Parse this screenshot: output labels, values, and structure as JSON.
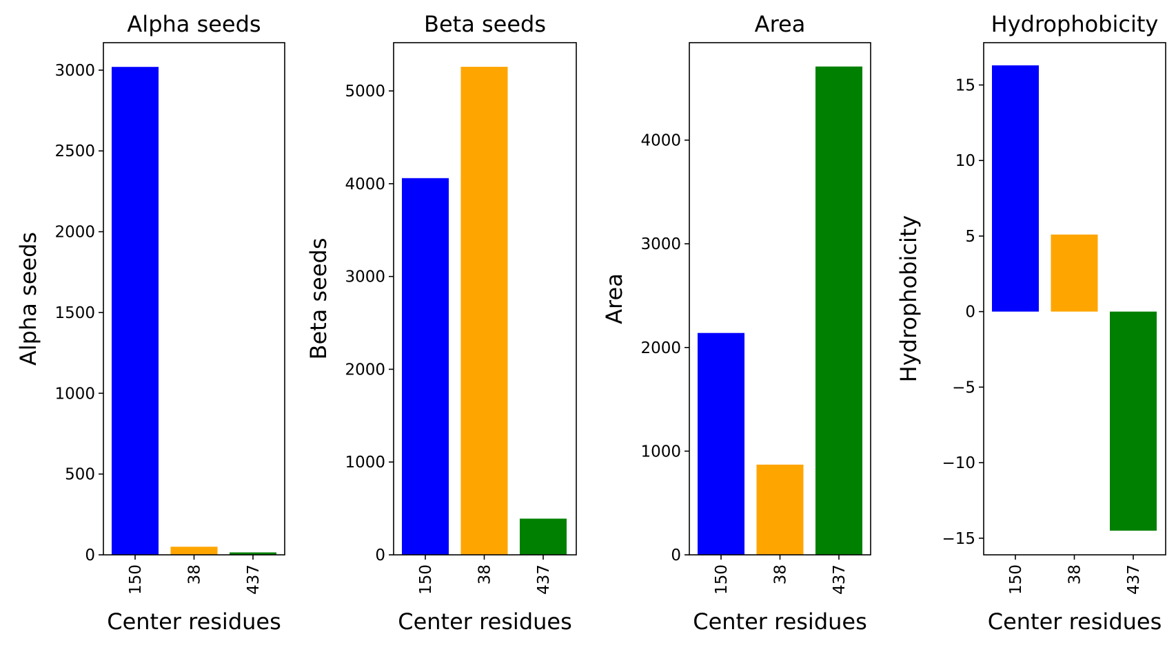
{
  "chart_data": [
    {
      "type": "bar",
      "title": "Alpha seeds",
      "xlabel": "Center residues",
      "ylabel": "Alpha seeds",
      "categories": [
        "150",
        "38",
        "437"
      ],
      "values": [
        3020,
        50,
        15
      ],
      "colors": [
        "#0000ff",
        "#ffa500",
        "#008000"
      ],
      "ylim": [
        0,
        3170
      ],
      "yticks": [
        0,
        500,
        1000,
        1500,
        2000,
        2500,
        3000
      ],
      "ytick_labels": [
        "0",
        "500",
        "1000",
        "1500",
        "2000",
        "2500",
        "3000"
      ],
      "grid": false
    },
    {
      "type": "bar",
      "title": "Beta seeds",
      "xlabel": "Center residues",
      "ylabel": "Beta seeds",
      "categories": [
        "150",
        "38",
        "437"
      ],
      "values": [
        4060,
        5260,
        390
      ],
      "colors": [
        "#0000ff",
        "#ffa500",
        "#008000"
      ],
      "ylim": [
        0,
        5520
      ],
      "yticks": [
        0,
        1000,
        2000,
        3000,
        4000,
        5000
      ],
      "ytick_labels": [
        "0",
        "1000",
        "2000",
        "3000",
        "4000",
        "5000"
      ],
      "grid": false
    },
    {
      "type": "bar",
      "title": "Area",
      "xlabel": "Center residues",
      "ylabel": "Area",
      "categories": [
        "150",
        "38",
        "437"
      ],
      "values": [
        2140,
        870,
        4710
      ],
      "colors": [
        "#0000ff",
        "#ffa500",
        "#008000"
      ],
      "ylim": [
        0,
        4940
      ],
      "yticks": [
        0,
        1000,
        2000,
        3000,
        4000
      ],
      "ytick_labels": [
        "0",
        "1000",
        "2000",
        "3000",
        "4000"
      ],
      "grid": false
    },
    {
      "type": "bar",
      "title": "Hydrophobicity",
      "xlabel": "Center residues",
      "ylabel": "Hydrophobicity",
      "categories": [
        "150",
        "38",
        "437"
      ],
      "values": [
        16.3,
        5.1,
        -14.5
      ],
      "colors": [
        "#0000ff",
        "#ffa500",
        "#008000"
      ],
      "ylim": [
        -16.1,
        17.8
      ],
      "yticks": [
        -15,
        -10,
        -5,
        0,
        5,
        10,
        15
      ],
      "ytick_labels": [
        "−15",
        "−10",
        "−5",
        "0",
        "5",
        "10",
        "15"
      ],
      "grid": false
    }
  ]
}
